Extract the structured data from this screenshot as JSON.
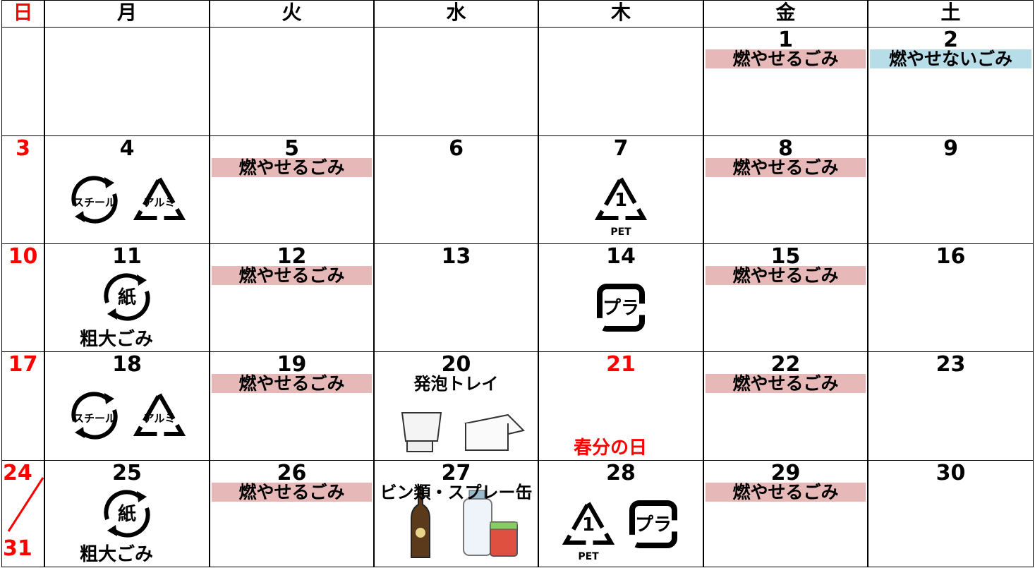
{
  "header": {
    "days": [
      "日",
      "月",
      "火",
      "水",
      "木",
      "金",
      "土"
    ],
    "colors": [
      "#ff0000",
      "#000000",
      "#000000",
      "#000000",
      "#000000",
      "#000000",
      "#000000"
    ]
  },
  "weeks": [
    [
      {},
      {},
      {},
      {},
      {},
      {
        "day": "1",
        "labels": [
          {
            "text": "燃やせるごみ",
            "bg": "#e6b8b7"
          }
        ]
      },
      {
        "day": "2",
        "labels": [
          {
            "text": "燃やせないごみ",
            "bg": "#b7dde8"
          }
        ]
      }
    ],
    [
      {
        "day": "3",
        "color": "#ff0000"
      },
      {
        "day": "4",
        "icons": [
          {
            "label": "スチール",
            "shape": "circle"
          },
          {
            "label": "アルミ",
            "shape": "triangle"
          }
        ]
      },
      {
        "day": "5",
        "labels": [
          {
            "text": "燃やせるごみ",
            "bg": "#e6b8b7"
          }
        ]
      },
      {
        "day": "6"
      },
      {
        "day": "7",
        "icons": [
          {
            "label": "1",
            "caption": "PET",
            "shape": "triangle"
          }
        ]
      },
      {
        "day": "8",
        "labels": [
          {
            "text": "燃やせるごみ",
            "bg": "#e6b8b7"
          }
        ]
      },
      {
        "day": "9"
      }
    ],
    [
      {
        "day": "10",
        "color": "#ff0000"
      },
      {
        "day": "11",
        "icons": [
          {
            "label": "紙",
            "shape": "circle"
          }
        ],
        "note": "粗大ごみ"
      },
      {
        "day": "12",
        "labels": [
          {
            "text": "燃やせるごみ",
            "bg": "#e6b8b7"
          }
        ]
      },
      {
        "day": "13"
      },
      {
        "day": "14",
        "icons": [
          {
            "label": "プラ",
            "shape": "square"
          }
        ]
      },
      {
        "day": "15",
        "labels": [
          {
            "text": "燃やせるごみ",
            "bg": "#e6b8b7"
          }
        ]
      },
      {
        "day": "16"
      }
    ],
    [
      {
        "day": "17",
        "color": "#ff0000"
      },
      {
        "day": "18",
        "icons": [
          {
            "label": "スチール",
            "shape": "circle"
          },
          {
            "label": "アルミ",
            "shape": "triangle"
          }
        ]
      },
      {
        "day": "19",
        "labels": [
          {
            "text": "燃やせるごみ",
            "bg": "#e6b8b7"
          }
        ]
      },
      {
        "day": "20",
        "sub": "発泡トレイ"
      },
      {
        "day": "21",
        "color": "#ff0000",
        "note": "春分の日",
        "note_color": "#ff0000"
      },
      {
        "day": "22",
        "labels": [
          {
            "text": "燃やせるごみ",
            "bg": "#e6b8b7"
          }
        ]
      },
      {
        "day": "23"
      }
    ],
    [
      {
        "day": "24",
        "day2": "31",
        "color": "#ff0000"
      },
      {
        "day": "25",
        "icons": [
          {
            "label": "紙",
            "shape": "circle"
          }
        ],
        "note": "粗大ごみ"
      },
      {
        "day": "26",
        "labels": [
          {
            "text": "燃やせるごみ",
            "bg": "#e6b8b7"
          }
        ]
      },
      {
        "day": "27",
        "sub": "ビン類・スプレー缶"
      },
      {
        "day": "28",
        "icons": [
          {
            "label": "1",
            "caption": "PET",
            "shape": "triangle"
          },
          {
            "label": "プラ",
            "shape": "square"
          }
        ]
      },
      {
        "day": "29",
        "labels": [
          {
            "text": "燃やせるごみ",
            "bg": "#e6b8b7"
          }
        ]
      },
      {
        "day": "30"
      }
    ]
  ]
}
